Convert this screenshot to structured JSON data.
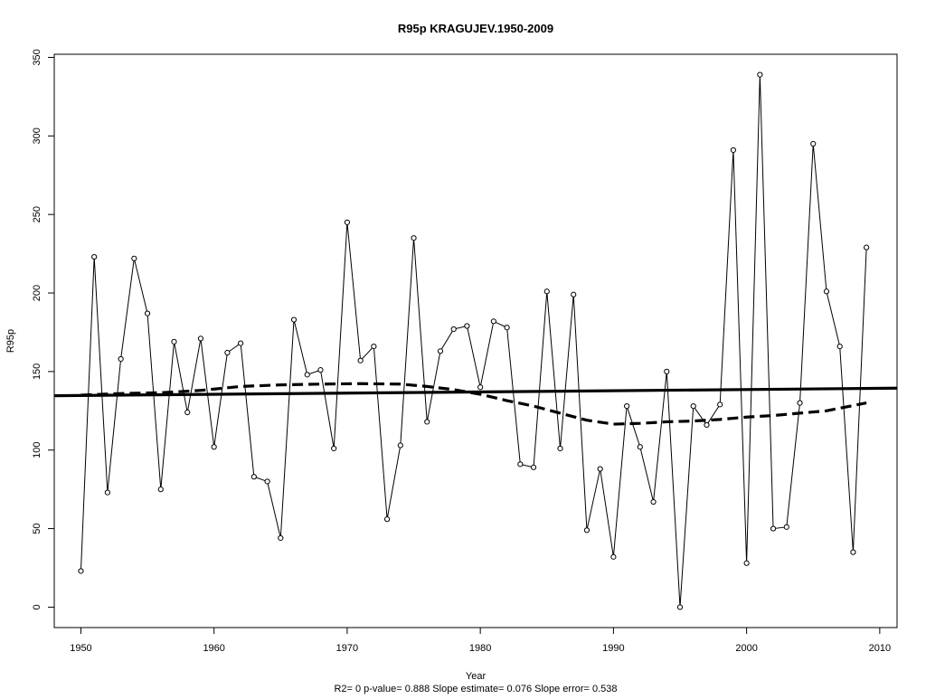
{
  "chart_data": {
    "type": "line",
    "title": "R95p    KRAGUJEV.1950-2009",
    "xlabel": "Year",
    "ylabel": "R95p",
    "subtitle": "R2= 0  p-value= 0.888  Slope estimate= 0.076  Slope error= 0.538",
    "xlim": [
      1948,
      2011.3
    ],
    "ylim": [
      -13,
      352
    ],
    "x_ticks": [
      1950,
      1960,
      1970,
      1980,
      1990,
      2000,
      2010
    ],
    "y_ticks": [
      0,
      50,
      100,
      150,
      200,
      250,
      300,
      350
    ],
    "grid": false,
    "legend": "none",
    "series": [
      {
        "style": "thin line with open circles",
        "x": [
          1950,
          1951,
          1952,
          1953,
          1954,
          1955,
          1956,
          1957,
          1958,
          1959,
          1960,
          1961,
          1962,
          1963,
          1964,
          1965,
          1966,
          1967,
          1968,
          1969,
          1970,
          1971,
          1972,
          1973,
          1974,
          1975,
          1976,
          1977,
          1978,
          1979,
          1980,
          1981,
          1982,
          1983,
          1984,
          1985,
          1986,
          1987,
          1988,
          1989,
          1990,
          1991,
          1992,
          1993,
          1994,
          1995,
          1996,
          1997,
          1998,
          1999,
          2000,
          2001,
          2002,
          2003,
          2004,
          2005,
          2006,
          2007,
          2008,
          2009
        ],
        "y": [
          23,
          223,
          73,
          158,
          222,
          187,
          75,
          169,
          124,
          171,
          102,
          162,
          168,
          83,
          80,
          44,
          183,
          148,
          151,
          101,
          245,
          157,
          166,
          56,
          103,
          235,
          118,
          163,
          177,
          179,
          140,
          182,
          178,
          91,
          89,
          201,
          101,
          199,
          49,
          88,
          32,
          128,
          102,
          67,
          150,
          0,
          128,
          116,
          129,
          291,
          28,
          339,
          50,
          51,
          130,
          295,
          201,
          166,
          35,
          229
        ]
      },
      {
        "style": "thick solid line (linear trend)",
        "x": [
          1948,
          2011.3
        ],
        "y": [
          134.6,
          139.4
        ]
      },
      {
        "style": "thick dashed line (smoothed)",
        "x": [
          1950,
          1953,
          1956,
          1959,
          1962,
          1965,
          1968,
          1971,
          1974,
          1976,
          1978,
          1980,
          1982,
          1984,
          1986,
          1988,
          1990,
          1992,
          1994,
          1996,
          1998,
          2000,
          2002,
          2004,
          2006,
          2009
        ],
        "y": [
          135,
          136,
          136.5,
          138,
          140.5,
          141.5,
          142,
          142.3,
          142,
          140.5,
          138.5,
          135.5,
          131.5,
          128,
          123.5,
          119,
          116.5,
          117,
          118,
          118.5,
          119.5,
          121,
          122,
          123.5,
          125,
          130
        ]
      }
    ]
  }
}
